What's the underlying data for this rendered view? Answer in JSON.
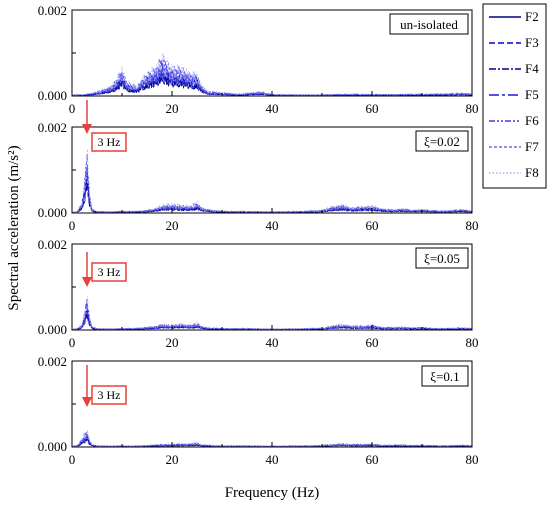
{
  "chart_data": {
    "type": "line",
    "xlabel": "Frequency (Hz)",
    "ylabel": "Spectral acceleration (m/s²)",
    "xlim": [
      0,
      80
    ],
    "ylim": [
      0,
      0.002
    ],
    "x_ticks": [
      "0",
      "20",
      "40",
      "60",
      "80"
    ],
    "y_ticks": [
      "0.000",
      "0.002"
    ],
    "legend": {
      "placement": "right",
      "entries": [
        {
          "name": "F2",
          "dash": "solid",
          "color": "#000080"
        },
        {
          "name": "F3",
          "dash": "dash",
          "color": "#0000cd"
        },
        {
          "name": "F4",
          "dash": "dashdot",
          "color": "#00008b"
        },
        {
          "name": "F5",
          "dash": "longdashdot",
          "color": "#1a1adb"
        },
        {
          "name": "F6",
          "dash": "dashdotdot",
          "color": "#3d3de0"
        },
        {
          "name": "F7",
          "dash": "shortdash",
          "color": "#6a6aee"
        },
        {
          "name": "F8",
          "dash": "dot",
          "color": "#a9a9f5"
        }
      ]
    },
    "panels": [
      {
        "label": "un-isolated",
        "annotation": "",
        "envelope": [
          [
            0,
            3e-05
          ],
          [
            2,
            5e-05
          ],
          [
            4,
            8e-05
          ],
          [
            6,
            0.00018
          ],
          [
            8,
            0.0003
          ],
          [
            9,
            0.0005
          ],
          [
            10,
            0.0008
          ],
          [
            11,
            0.0004
          ],
          [
            12,
            0.00032
          ],
          [
            13,
            0.00028
          ],
          [
            14,
            0.0005
          ],
          [
            15,
            0.0006
          ],
          [
            16,
            0.00075
          ],
          [
            17,
            0.0009
          ],
          [
            18,
            0.0011
          ],
          [
            19,
            0.00095
          ],
          [
            20,
            0.00085
          ],
          [
            21,
            0.0008
          ],
          [
            22,
            0.00078
          ],
          [
            23,
            0.00072
          ],
          [
            24,
            0.00062
          ],
          [
            25,
            0.0006
          ],
          [
            26,
            0.0003
          ],
          [
            27,
            0.00015
          ],
          [
            28,
            0.00012
          ],
          [
            30,
            0.0001
          ],
          [
            32,
            7e-05
          ],
          [
            34,
            6e-05
          ],
          [
            36,
            0.0001
          ],
          [
            38,
            0.00012
          ],
          [
            40,
            5e-05
          ],
          [
            45,
            4e-05
          ],
          [
            50,
            4e-05
          ],
          [
            55,
            6e-05
          ],
          [
            60,
            5e-05
          ],
          [
            65,
            5e-05
          ],
          [
            70,
            6e-05
          ],
          [
            75,
            7e-05
          ],
          [
            78,
            9e-05
          ],
          [
            80,
            6e-05
          ]
        ]
      },
      {
        "label": "ξ=0.02",
        "annotation": "3 Hz",
        "envelope": [
          [
            0,
            2e-05
          ],
          [
            1,
            4e-05
          ],
          [
            2,
            0.0003
          ],
          [
            2.5,
            0.0009
          ],
          [
            3,
            0.0019
          ],
          [
            3.5,
            0.0006
          ],
          [
            4,
            0.00012
          ],
          [
            5,
            5e-05
          ],
          [
            8,
            4e-05
          ],
          [
            10,
            6e-05
          ],
          [
            12,
            5e-05
          ],
          [
            15,
            8e-05
          ],
          [
            17,
            0.00015
          ],
          [
            18,
            0.00022
          ],
          [
            20,
            0.00025
          ],
          [
            22,
            0.0002
          ],
          [
            24,
            0.00022
          ],
          [
            25,
            0.00028
          ],
          [
            26,
            0.00015
          ],
          [
            28,
            8e-05
          ],
          [
            30,
            6e-05
          ],
          [
            35,
            5e-05
          ],
          [
            40,
            4e-05
          ],
          [
            45,
            5e-05
          ],
          [
            50,
            8e-05
          ],
          [
            52,
            0.00018
          ],
          [
            54,
            0.00022
          ],
          [
            56,
            0.00015
          ],
          [
            58,
            0.00018
          ],
          [
            60,
            0.0002
          ],
          [
            62,
            0.00012
          ],
          [
            64,
            0.0001
          ],
          [
            66,
            0.00012
          ],
          [
            68,
            9e-05
          ],
          [
            70,
            0.0001
          ],
          [
            72,
            8e-05
          ],
          [
            74,
            7e-05
          ],
          [
            76,
            8e-05
          ],
          [
            78,
            0.0001
          ],
          [
            80,
            6e-05
          ]
        ]
      },
      {
        "label": "ξ=0.05",
        "annotation": "3 Hz",
        "envelope": [
          [
            0,
            2e-05
          ],
          [
            1,
            4e-05
          ],
          [
            2,
            0.00015
          ],
          [
            2.5,
            0.0005
          ],
          [
            3,
            0.001
          ],
          [
            3.5,
            0.0004
          ],
          [
            4,
            0.0001
          ],
          [
            5,
            4e-05
          ],
          [
            8,
            4e-05
          ],
          [
            10,
            5e-05
          ],
          [
            12,
            5e-05
          ],
          [
            15,
            8e-05
          ],
          [
            17,
            0.00012
          ],
          [
            18,
            0.00016
          ],
          [
            20,
            0.00015
          ],
          [
            22,
            0.00018
          ],
          [
            24,
            0.00014
          ],
          [
            25,
            0.0002
          ],
          [
            26,
            0.0001
          ],
          [
            28,
            6e-05
          ],
          [
            30,
            5e-05
          ],
          [
            35,
            5e-05
          ],
          [
            40,
            3e-05
          ],
          [
            45,
            4e-05
          ],
          [
            50,
            6e-05
          ],
          [
            52,
            0.00012
          ],
          [
            54,
            0.00016
          ],
          [
            56,
            0.00012
          ],
          [
            58,
            0.00012
          ],
          [
            60,
            0.00014
          ],
          [
            62,
            8e-05
          ],
          [
            64,
            8e-05
          ],
          [
            66,
            9e-05
          ],
          [
            68,
            7e-05
          ],
          [
            70,
            8e-05
          ],
          [
            72,
            6e-05
          ],
          [
            74,
            5e-05
          ],
          [
            76,
            6e-05
          ],
          [
            78,
            7e-05
          ],
          [
            80,
            5e-05
          ]
        ]
      },
      {
        "label": "ξ=0.1",
        "annotation": "3 Hz",
        "envelope": [
          [
            0,
            2e-05
          ],
          [
            1,
            5e-05
          ],
          [
            1.5,
            0.00012
          ],
          [
            2,
            0.00025
          ],
          [
            2.5,
            0.00035
          ],
          [
            3,
            0.0005
          ],
          [
            3.5,
            0.0002
          ],
          [
            4,
            8e-05
          ],
          [
            5,
            4e-05
          ],
          [
            8,
            3e-05
          ],
          [
            10,
            4e-05
          ],
          [
            12,
            3e-05
          ],
          [
            15,
            5e-05
          ],
          [
            17,
            7e-05
          ],
          [
            18,
            8e-05
          ],
          [
            20,
            8e-05
          ],
          [
            22,
            9e-05
          ],
          [
            24,
            0.0001
          ],
          [
            25,
            0.00012
          ],
          [
            26,
            7e-05
          ],
          [
            28,
            5e-05
          ],
          [
            30,
            4e-05
          ],
          [
            35,
            4e-05
          ],
          [
            40,
            3e-05
          ],
          [
            45,
            4e-05
          ],
          [
            50,
            5e-05
          ],
          [
            52,
            8e-05
          ],
          [
            54,
            0.0001
          ],
          [
            56,
            8e-05
          ],
          [
            58,
            8e-05
          ],
          [
            60,
            9e-05
          ],
          [
            62,
            6e-05
          ],
          [
            64,
            6e-05
          ],
          [
            66,
            7e-05
          ],
          [
            68,
            5e-05
          ],
          [
            70,
            6e-05
          ],
          [
            72,
            5e-05
          ],
          [
            74,
            4e-05
          ],
          [
            76,
            5e-05
          ],
          [
            78,
            6e-05
          ],
          [
            80,
            4e-05
          ]
        ]
      }
    ]
  }
}
